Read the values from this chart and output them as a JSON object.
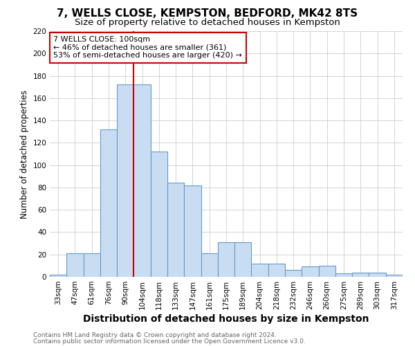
{
  "title": "7, WELLS CLOSE, KEMPSTON, BEDFORD, MK42 8TS",
  "subtitle": "Size of property relative to detached houses in Kempston",
  "xlabel": "Distribution of detached houses by size in Kempston",
  "ylabel": "Number of detached properties",
  "categories": [
    "33sqm",
    "47sqm",
    "61sqm",
    "76sqm",
    "90sqm",
    "104sqm",
    "118sqm",
    "133sqm",
    "147sqm",
    "161sqm",
    "175sqm",
    "189sqm",
    "204sqm",
    "218sqm",
    "232sqm",
    "246sqm",
    "260sqm",
    "275sqm",
    "289sqm",
    "303sqm",
    "317sqm"
  ],
  "values": [
    2,
    21,
    21,
    132,
    172,
    172,
    112,
    84,
    82,
    21,
    31,
    31,
    12,
    12,
    6,
    9,
    10,
    3,
    4,
    4,
    2
  ],
  "bar_color": "#c9ddf2",
  "bar_edge_color": "#6699cc",
  "vline_color": "#cc0000",
  "vline_x": 4.5,
  "annotation_text": "7 WELLS CLOSE: 100sqm\n← 46% of detached houses are smaller (361)\n53% of semi-detached houses are larger (420) →",
  "annotation_box_color": "#ffffff",
  "annotation_box_edge_color": "#cc0000",
  "ylim": [
    0,
    220
  ],
  "yticks": [
    0,
    20,
    40,
    60,
    80,
    100,
    120,
    140,
    160,
    180,
    200,
    220
  ],
  "bg_color": "#ffffff",
  "fig_bg_color": "#ffffff",
  "grid_color": "#cccccc",
  "title_fontsize": 11,
  "subtitle_fontsize": 9.5,
  "xlabel_fontsize": 10,
  "ylabel_fontsize": 8.5,
  "tick_fontsize": 7.5,
  "annotation_fontsize": 8,
  "footnote1": "Contains HM Land Registry data © Crown copyright and database right 2024.",
  "footnote2": "Contains public sector information licensed under the Open Government Licence v3.0.",
  "footnote_fontsize": 6.5,
  "footnote_color": "#666666"
}
